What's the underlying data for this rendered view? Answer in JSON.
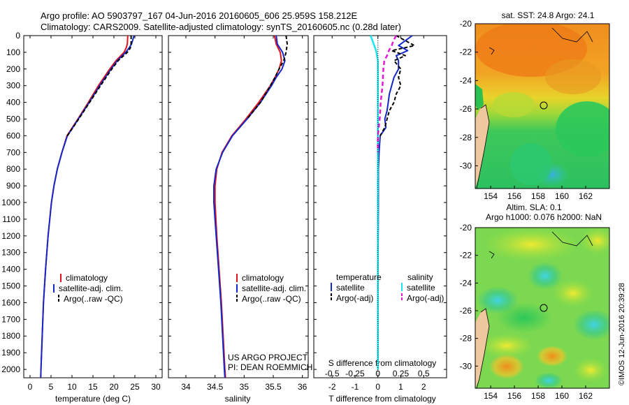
{
  "header": {
    "line1": "Argo profile: AO 5903797_167 04-Jun-2016 20160605_606 25.959S 158.212E",
    "line2": "Climatology: CARS2009. Satellite-adjusted climatology: synTS_20160605.nc (0.28d later)"
  },
  "colors": {
    "climatology": "#e0141e",
    "satellite": "#1428c8",
    "argo": "#000000",
    "sat_s": "#19e6f0",
    "argo_s": "#e619d2"
  },
  "chart_data": [
    {
      "type": "line",
      "title": "Temperature profile",
      "xlabel": "temperature (deg C)",
      "ylabel": "",
      "xlim": [
        -1.5,
        31.5
      ],
      "ylim": [
        0,
        2050
      ],
      "x_ticks": [
        "0",
        "5",
        "10",
        "15",
        "20",
        "25",
        "30"
      ],
      "y_ticks": [
        "0",
        "100",
        "200",
        "300",
        "400",
        "500",
        "600",
        "700",
        "800",
        "900",
        "1000",
        "1100",
        "1200",
        "1300",
        "1400",
        "1500",
        "1600",
        "1700",
        "1800",
        "1900",
        "2000"
      ],
      "legend": [
        "climatology",
        "satellite-adj. clim.",
        "Argo(..raw -QC)"
      ],
      "series": [
        {
          "name": "climatology",
          "depth": [
            0,
            50,
            75,
            100,
            150,
            200,
            300,
            400,
            500,
            600,
            700,
            800,
            900,
            1000,
            1200,
            1400,
            1600,
            1800,
            2000,
            2050
          ],
          "values": [
            23.3,
            23.2,
            22.9,
            22.4,
            20.5,
            19,
            16.3,
            13.9,
            11.4,
            8.8,
            7.6,
            6.5,
            5.7,
            5.1,
            4.3,
            3.7,
            3.2,
            2.9,
            2.6,
            2.55
          ]
        },
        {
          "name": "satellite-adj. clim.",
          "depth": [
            0,
            50,
            75,
            100,
            150,
            200,
            300,
            400,
            500,
            600,
            700,
            800,
            900,
            1000,
            1200,
            1400,
            1600,
            1800,
            2000,
            2050
          ],
          "values": [
            24.8,
            24.2,
            23.6,
            22.8,
            20.8,
            19.3,
            16.6,
            14.1,
            11.5,
            8.9,
            7.6,
            6.5,
            5.7,
            5.1,
            4.3,
            3.7,
            3.2,
            2.9,
            2.6,
            2.55
          ]
        },
        {
          "name": "Argo(..raw -QC)",
          "depth": [
            0,
            50,
            75,
            100,
            150,
            200,
            300,
            400,
            500,
            600
          ],
          "values": [
            24.1,
            24.1,
            23.9,
            23.2,
            21,
            19.5,
            16.8,
            14.2,
            11.6,
            8.9
          ]
        }
      ]
    },
    {
      "type": "line",
      "title": "Salinity profile",
      "xlabel": "salinity",
      "ylabel": "",
      "xlim": [
        33.7,
        36.1
      ],
      "ylim": [
        0,
        2050
      ],
      "x_ticks": [
        "34",
        "34.5",
        "35",
        "35.5",
        "36"
      ],
      "legend": [
        "climatology",
        "satellite-adj. clim.",
        "Argo(..raw -QC)"
      ],
      "annotation": [
        "US ARGO PROJECT",
        "PI: DEAN ROEMMICH"
      ],
      "series": [
        {
          "name": "climatology",
          "depth": [
            0,
            50,
            100,
            150,
            200,
            250,
            300,
            400,
            500,
            600,
            700,
            800,
            900,
            1000,
            1200,
            1400,
            1600,
            1800,
            2000,
            2050
          ],
          "values": [
            35.52,
            35.55,
            35.62,
            35.64,
            35.6,
            35.53,
            35.45,
            35.25,
            35.03,
            34.79,
            34.62,
            34.53,
            34.5,
            34.5,
            34.53,
            34.57,
            34.61,
            34.64,
            34.67,
            34.68
          ]
        },
        {
          "name": "satellite-adj. clim.",
          "depth": [
            0,
            50,
            100,
            150,
            200,
            250,
            300,
            400,
            500,
            600,
            700,
            800,
            900,
            1000,
            1200,
            1400,
            1600,
            1800,
            2000,
            2050
          ],
          "values": [
            35.55,
            35.57,
            35.66,
            35.7,
            35.65,
            35.55,
            35.47,
            35.28,
            35.05,
            34.8,
            34.63,
            34.52,
            34.48,
            34.48,
            34.52,
            34.56,
            34.6,
            34.63,
            34.66,
            34.67
          ]
        },
        {
          "name": "Argo(..raw -QC)",
          "depth": [
            0,
            50,
            100,
            150,
            200,
            250,
            300,
            400,
            500
          ],
          "values": [
            35.72,
            35.74,
            35.72,
            35.68,
            35.6,
            35.53,
            35.45,
            35.28,
            35.05
          ]
        }
      ]
    },
    {
      "type": "line",
      "title": "Difference from climatology",
      "xlabel": "T difference from climatology",
      "xlabel_top": "S difference from climatology",
      "xlim": [
        -2.8,
        3.0
      ],
      "x_ticks": [
        "-2",
        "-1",
        "0",
        "1",
        "2"
      ],
      "x2_ticks": [
        "-0.5",
        "-0.25",
        "0",
        "0.25",
        "0.5"
      ],
      "ylim": [
        0,
        2050
      ],
      "legend_titles": [
        "temperature",
        "salinity"
      ],
      "legend": [
        "satellite",
        "Argo(-adj)",
        "satellite",
        "Argo(-adj)"
      ],
      "series": [
        {
          "name": "T satellite",
          "depth": [
            0,
            30,
            60,
            90,
            120,
            150,
            200,
            250,
            300,
            350,
            400,
            450,
            500,
            550,
            600,
            700,
            800,
            1000,
            1500,
            2000
          ],
          "values": [
            1.5,
            1.2,
            0.9,
            1.3,
            0.8,
            0.9,
            0.9,
            0.7,
            0.6,
            0.5,
            0.45,
            0.4,
            0.3,
            0.35,
            0.1,
            0.05,
            0.02,
            0.02,
            0.0,
            0.0
          ]
        },
        {
          "name": "T Argo(-adj)",
          "depth": [
            0,
            30,
            60,
            90,
            120,
            150,
            200,
            250,
            300,
            350,
            400,
            450,
            500,
            550,
            600
          ],
          "values": [
            0.8,
            1.2,
            1.6,
            0.6,
            1.2,
            0.7,
            1.0,
            0.9,
            1.0,
            0.8,
            0.7,
            0.5,
            0.4,
            0.3,
            0.1
          ]
        },
        {
          "name": "S satellite",
          "depth": [
            0,
            30,
            60,
            90,
            120,
            150,
            200,
            300,
            400,
            600,
            800,
            1000,
            1200,
            1500,
            2000
          ],
          "values": [
            -0.08,
            -0.06,
            -0.04,
            -0.02,
            -0.01,
            0.0,
            0.0,
            0.0,
            0.0,
            0.0,
            0.0,
            0.0,
            0.0,
            0.0,
            0.0
          ]
        },
        {
          "name": "S Argo(-adj)",
          "depth": [
            0,
            30,
            60,
            90,
            120,
            150,
            200,
            300,
            400,
            500,
            600,
            650,
            700
          ],
          "values": [
            0.2,
            0.17,
            0.15,
            0.12,
            0.1,
            0.07,
            0.06,
            0.05,
            0.03,
            0.02,
            0.0,
            0.0,
            0.0
          ]
        }
      ]
    }
  ],
  "maps": {
    "sst": {
      "title": "sat. SST: 24.8 Argo: 24.1",
      "lat_ticks": [
        "-20",
        "-22",
        "-24",
        "-26",
        "-28",
        "-30"
      ],
      "lon_ticks": [
        "154",
        "156",
        "158",
        "160",
        "162"
      ],
      "marker": {
        "lon": 158.2,
        "lat": -26.0
      }
    },
    "sla": {
      "title1": "Altim. SLA: 0.1",
      "title2": "Argo h1000: 0.076 h2000: NaN",
      "lat_ticks": [
        "-20",
        "-22",
        "-24",
        "-26",
        "-28",
        "-30"
      ],
      "lon_ticks": [
        "154",
        "156",
        "158",
        "160",
        "162"
      ],
      "marker": {
        "lon": 158.2,
        "lat": -26.0
      }
    }
  },
  "footer": {
    "stamp": "©IMOS 12-Jun-2016 20:39:28"
  }
}
